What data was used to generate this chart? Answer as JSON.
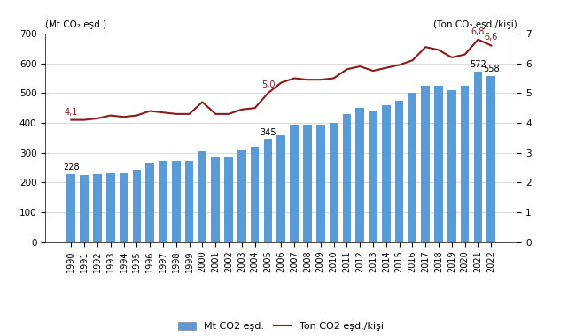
{
  "years": [
    1990,
    1991,
    1992,
    1993,
    1994,
    1995,
    1996,
    1997,
    1998,
    1999,
    2000,
    2001,
    2002,
    2003,
    2004,
    2005,
    2006,
    2007,
    2008,
    2009,
    2010,
    2011,
    2012,
    2013,
    2014,
    2015,
    2016,
    2017,
    2018,
    2019,
    2020,
    2021,
    2022
  ],
  "bar_values": [
    228,
    225,
    228,
    232,
    232,
    243,
    265,
    272,
    272,
    272,
    305,
    285,
    285,
    308,
    320,
    345,
    358,
    395,
    395,
    395,
    400,
    430,
    450,
    440,
    460,
    475,
    500,
    525,
    525,
    510,
    525,
    572,
    558
  ],
  "line_values": [
    4.1,
    4.1,
    4.15,
    4.25,
    4.2,
    4.25,
    4.4,
    4.35,
    4.3,
    4.3,
    4.7,
    4.3,
    4.3,
    4.45,
    4.5,
    5.0,
    5.35,
    5.5,
    5.45,
    5.45,
    5.5,
    5.8,
    5.9,
    5.75,
    5.85,
    5.95,
    6.1,
    6.55,
    6.45,
    6.2,
    6.3,
    6.8,
    6.6
  ],
  "bar_color": "#5b9bd5",
  "line_color": "#8b1a1a",
  "label_left": "(Mt CO₂ eşd.)",
  "label_right": "(Ton CO₂ eşd./kişi)",
  "ylim_left": [
    0,
    700
  ],
  "ylim_right": [
    0,
    7
  ],
  "yticks_left": [
    0,
    100,
    200,
    300,
    400,
    500,
    600,
    700
  ],
  "yticks_right": [
    0,
    1,
    2,
    3,
    4,
    5,
    6,
    7
  ],
  "legend_bar": "Mt CO2 eşd.",
  "legend_line": "Ton CO2 eşd./kişi",
  "annotated_bars": {
    "1990": {
      "value": 228,
      "label": "228"
    },
    "2005": {
      "value": 345,
      "label": "345"
    },
    "2021": {
      "value": 572,
      "label": "572"
    },
    "2022": {
      "value": 558,
      "label": "558"
    }
  },
  "annotated_line": {
    "1990": {
      "value": 4.1,
      "label": "4,1"
    },
    "2005": {
      "value": 5.0,
      "label": "5,0"
    },
    "2021": {
      "value": 6.8,
      "label": "6,8"
    },
    "2022": {
      "value": 6.6,
      "label": "6,6"
    }
  },
  "background_color": "#ffffff",
  "bar_width": 0.65
}
